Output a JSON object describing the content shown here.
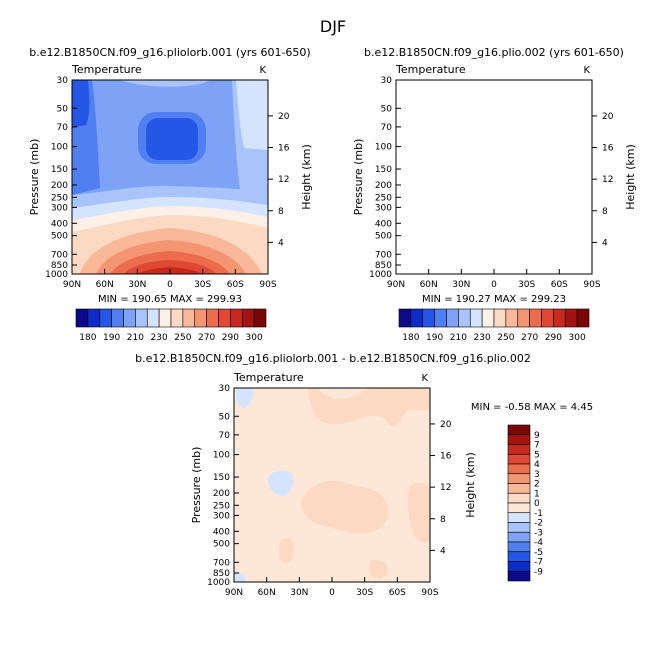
{
  "page_title": "DJF",
  "chart_data": [
    {
      "type": "heatmap",
      "id": "top-left",
      "title": "b.e12.B1850CN.f09_g16.pliolorb.001 (yrs 601-650)",
      "left_label": "Temperature",
      "right_label": "K",
      "xlabel": "",
      "ylabel": "Pressure (mb)",
      "y2label": "Height (km)",
      "x_ticks": [
        "90N",
        "60N",
        "30N",
        "0",
        "30S",
        "60S",
        "90S"
      ],
      "y_ticks": [
        "30",
        "50",
        "70",
        "100",
        "150",
        "200",
        "250",
        "300",
        "400",
        "500",
        "700",
        "850",
        "1000"
      ],
      "y2_ticks": [
        "20",
        "16",
        "12",
        "8",
        "4"
      ],
      "stats": "MIN = 190.65   MAX = 299.93",
      "colorbar_labels": [
        "180",
        "190",
        "210",
        "230",
        "250",
        "270",
        "290",
        "300"
      ],
      "colorbar_colors": [
        "#0a0a8a",
        "#0d2bc7",
        "#2457e6",
        "#4f7ff0",
        "#7ea3f6",
        "#a8c4fa",
        "#d4e4fd",
        "#fdf0e6",
        "#fcd9c2",
        "#f9b898",
        "#f49572",
        "#ec6d4e",
        "#df4833",
        "#c72a1d",
        "#a2140f",
        "#7a0606"
      ]
    },
    {
      "type": "heatmap",
      "id": "top-right",
      "title": "b.e12.B1850CN.f09_g16.plio.002 (yrs 601-650)",
      "left_label": "Temperature",
      "right_label": "K",
      "xlabel": "",
      "ylabel": "Pressure (mb)",
      "y2label": "Height (km)",
      "x_ticks": [
        "90N",
        "60N",
        "30N",
        "0",
        "30S",
        "60S",
        "90S"
      ],
      "y_ticks": [
        "30",
        "50",
        "70",
        "100",
        "150",
        "200",
        "250",
        "300",
        "400",
        "500",
        "700",
        "850",
        "1000"
      ],
      "y2_ticks": [
        "20",
        "16",
        "12",
        "8",
        "4"
      ],
      "stats": "MIN = 190.27   MAX = 299.23",
      "colorbar_labels": [
        "180",
        "190",
        "210",
        "230",
        "250",
        "270",
        "290",
        "300"
      ],
      "colorbar_colors": [
        "#0a0a8a",
        "#0d2bc7",
        "#2457e6",
        "#4f7ff0",
        "#7ea3f6",
        "#a8c4fa",
        "#d4e4fd",
        "#fdf0e6",
        "#fcd9c2",
        "#f9b898",
        "#f49572",
        "#ec6d4e",
        "#df4833",
        "#c72a1d",
        "#a2140f",
        "#7a0606"
      ]
    },
    {
      "type": "heatmap",
      "id": "difference",
      "title": "b.e12.B1850CN.f09_g16.pliolorb.001 - b.e12.B1850CN.f09_g16.plio.002",
      "left_label": "Temperature",
      "right_label": "K",
      "xlabel": "",
      "ylabel": "Pressure (mb)",
      "y2label": "Height (km)",
      "x_ticks": [
        "90N",
        "60N",
        "30N",
        "0",
        "30S",
        "60S",
        "90S"
      ],
      "y_ticks": [
        "30",
        "50",
        "70",
        "100",
        "150",
        "200",
        "250",
        "300",
        "400",
        "500",
        "700",
        "850",
        "1000"
      ],
      "y2_ticks": [
        "20",
        "16",
        "12",
        "8",
        "4"
      ],
      "stats": "MIN =  -0.58   MAX =   4.45",
      "colorbar_labels": [
        "9",
        "7",
        "5",
        "4",
        "3",
        "2",
        "1",
        "0",
        "-1",
        "-2",
        "-3",
        "-4",
        "-5",
        "-7",
        "-9"
      ],
      "colorbar_colors": [
        "#7a0606",
        "#a2140f",
        "#c72a1d",
        "#df4833",
        "#ec6d4e",
        "#f49572",
        "#f9b898",
        "#fcd9c2",
        "#fde8d8",
        "#d4e4fd",
        "#a8c4fa",
        "#7ea3f6",
        "#4f7ff0",
        "#2457e6",
        "#0d2bc7",
        "#0a0a8a"
      ]
    }
  ]
}
